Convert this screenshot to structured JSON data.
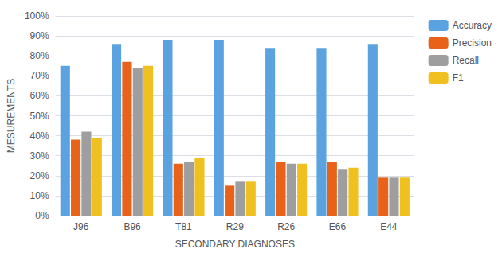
{
  "chart_data": {
    "type": "bar",
    "xlabel": "SECONDARY DIAGNOSES",
    "ylabel": "MESUREMENTS",
    "categories": [
      "J96",
      "B96",
      "T81",
      "R29",
      "R26",
      "E66",
      "E44"
    ],
    "series": [
      {
        "name": "Accuracy",
        "color": "#5BA3E0",
        "values": [
          75,
          86,
          88,
          88,
          84,
          84,
          86
        ]
      },
      {
        "name": "Precision",
        "color": "#E8621A",
        "values": [
          38,
          77,
          26,
          15,
          27,
          27,
          19
        ]
      },
      {
        "name": "Recall",
        "color": "#9E9E9E",
        "values": [
          42,
          74,
          27,
          17,
          26,
          23,
          19
        ]
      },
      {
        "name": "F1",
        "color": "#F0C020",
        "values": [
          39,
          75,
          29,
          17,
          26,
          24,
          19
        ]
      }
    ],
    "ylim": [
      0,
      100
    ],
    "yticks": [
      {
        "value": 0,
        "label": "0%"
      },
      {
        "value": 10,
        "label": "10%"
      },
      {
        "value": 20,
        "label": "20%"
      },
      {
        "value": 30,
        "label": "30%"
      },
      {
        "value": 40,
        "label": "40%"
      },
      {
        "value": 50,
        "label": "50%"
      },
      {
        "value": 60,
        "label": "60%"
      },
      {
        "value": 70,
        "label": "70%"
      },
      {
        "value": 80,
        "label": "80%"
      },
      {
        "value": 90,
        "label": "90%"
      },
      {
        "value": 100,
        "label": "100%"
      }
    ],
    "grid": true,
    "legend": "right"
  }
}
